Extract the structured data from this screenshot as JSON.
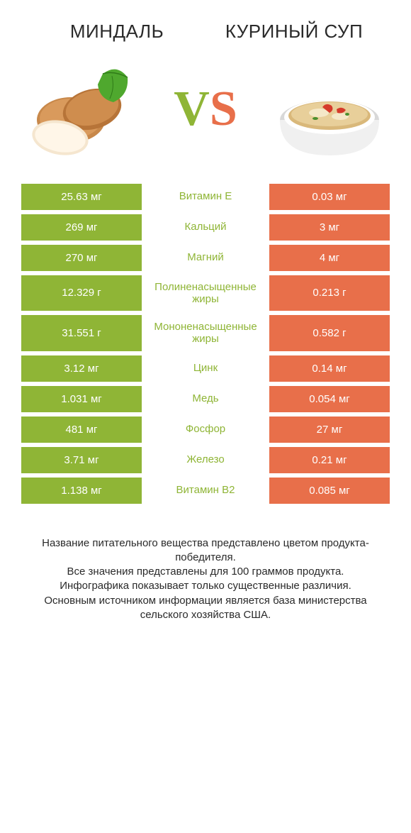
{
  "colors": {
    "left": "#8fb536",
    "right": "#e86f4a",
    "bg": "#ffffff",
    "text": "#2a2a2a"
  },
  "left_title": "Миндаль",
  "right_title": "Куриный суп",
  "vs": {
    "v": "V",
    "s": "S"
  },
  "rows": [
    {
      "left": "25.63 мг",
      "label": "Витамин E",
      "right": "0.03 мг",
      "winner": "left"
    },
    {
      "left": "269 мг",
      "label": "Кальций",
      "right": "3 мг",
      "winner": "left"
    },
    {
      "left": "270 мг",
      "label": "Магний",
      "right": "4 мг",
      "winner": "left"
    },
    {
      "left": "12.329 г",
      "label": "Полиненасыщенные жиры",
      "right": "0.213 г",
      "winner": "left"
    },
    {
      "left": "31.551 г",
      "label": "Мононенасыщенные жиры",
      "right": "0.582 г",
      "winner": "left"
    },
    {
      "left": "3.12 мг",
      "label": "Цинк",
      "right": "0.14 мг",
      "winner": "left"
    },
    {
      "left": "1.031 мг",
      "label": "Медь",
      "right": "0.054 мг",
      "winner": "left"
    },
    {
      "left": "481 мг",
      "label": "Фосфор",
      "right": "27 мг",
      "winner": "left"
    },
    {
      "left": "3.71 мг",
      "label": "Железо",
      "right": "0.21 мг",
      "winner": "left"
    },
    {
      "left": "1.138 мг",
      "label": "Витамин B2",
      "right": "0.085 мг",
      "winner": "left"
    }
  ],
  "footer": "Название питательного вещества представлено цветом продукта-победителя.\nВсе значения представлены для 100 граммов продукта.\nИнфографика показывает только существенные различия.\nОсновным источником информации является база министерства сельского хозяйства США."
}
